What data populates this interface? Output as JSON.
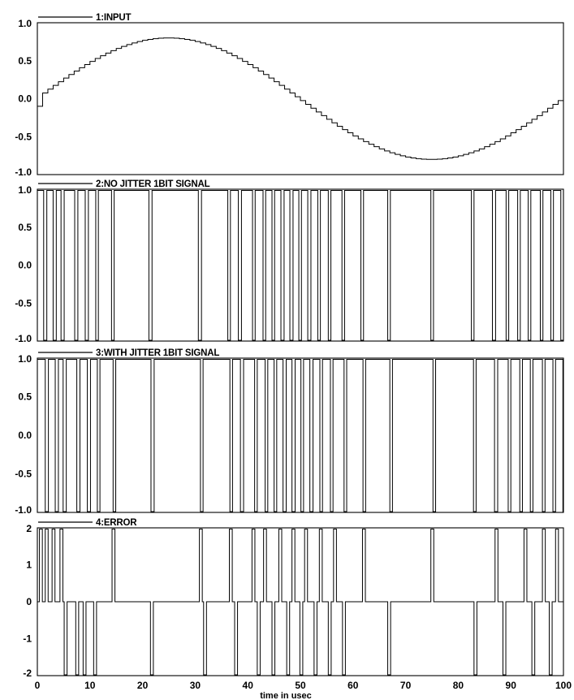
{
  "chart_data": {
    "type": "line",
    "x_axis": {
      "label": "time in usec",
      "range": [
        0,
        100
      ],
      "ticks": [
        0,
        10,
        20,
        30,
        40,
        50,
        60,
        70,
        80,
        90,
        100
      ]
    },
    "panels": [
      {
        "legend": "1:INPUT",
        "y_range": [
          -1,
          1
        ],
        "y_tick_labels": [
          "1.0",
          "0.5",
          "0.0",
          "-0.5",
          "-1.0"
        ],
        "y_ticks": [
          1,
          0.5,
          0,
          -0.5,
          -1
        ],
        "signal": "sine",
        "amplitude": 0.8,
        "period_usec": 100,
        "phase_start": -0.1,
        "step_usec": 1
      },
      {
        "legend": "2:NO  JITTER  1BIT  SIGNAL",
        "y_range": [
          -1,
          1
        ],
        "y_tick_labels": [
          "1.0",
          "0.5",
          "0.0",
          "-0.5",
          "-1.0"
        ],
        "y_ticks": [
          1,
          0.5,
          0,
          -0.5,
          -1
        ],
        "levels": [
          -1,
          1
        ],
        "edges": [
          0,
          1.2,
          1.8,
          3.0,
          3.6,
          4.5,
          5.1,
          7.1,
          7.7,
          9.1,
          9.7,
          11.1,
          11.6,
          14.1,
          14.6,
          21.2,
          21.8,
          30.6,
          31.2,
          36.2,
          36.7,
          38.2,
          38.8,
          40.9,
          41.4,
          42.9,
          43.4,
          44.6,
          45.1,
          46.3,
          46.9,
          48.0,
          48.6,
          49.7,
          50.2,
          51.4,
          52.0,
          53.3,
          53.8,
          55.3,
          55.8,
          57.9,
          58.4,
          61.5,
          62.0,
          66.6,
          67.1,
          74.8,
          75.3,
          82.5,
          83.0,
          86.5,
          87.1,
          89.1,
          89.6,
          91.3,
          91.8,
          93.3,
          93.8,
          95.6,
          96.1,
          97.6,
          98.1,
          99.5
        ],
        "start_level": 1
      },
      {
        "legend": "3:WITH  JITTER  1BIT  SIGNAL",
        "y_range": [
          -1,
          1
        ],
        "y_tick_labels": [
          "1.0",
          "0.5",
          "0.0",
          "-0.5",
          "-1.0"
        ],
        "y_ticks": [
          1,
          0.5,
          0,
          -0.5,
          -1
        ],
        "levels": [
          -1,
          1
        ],
        "edges": [
          0,
          1.5,
          2.1,
          3.4,
          4.0,
          4.9,
          5.5,
          7.5,
          8.1,
          9.5,
          10.1,
          11.4,
          11.9,
          14.4,
          14.9,
          21.6,
          22.2,
          31.0,
          31.5,
          36.6,
          37.1,
          38.6,
          39.2,
          41.3,
          41.8,
          43.3,
          43.8,
          45.0,
          45.5,
          46.7,
          47.3,
          48.4,
          49.0,
          50.1,
          50.6,
          51.8,
          52.4,
          53.7,
          54.2,
          55.7,
          56.2,
          58.3,
          58.8,
          61.9,
          62.4,
          67.0,
          67.5,
          75.2,
          75.7,
          82.9,
          83.4,
          86.9,
          87.5,
          89.5,
          90.0,
          91.7,
          92.2,
          93.7,
          94.2,
          96.0,
          96.5,
          98.0,
          98.5,
          99.9
        ],
        "start_level": 1
      },
      {
        "legend": "4:ERROR",
        "y_range": [
          -2,
          2
        ],
        "y_tick_labels": [
          "2",
          "1",
          "0",
          "-1",
          "-2"
        ],
        "y_ticks": [
          2,
          1,
          0,
          -1,
          -2
        ],
        "pulses": [
          {
            "x": 0.4,
            "sign": 1
          },
          {
            "x": 1.5,
            "sign": 1
          },
          {
            "x": 2.8,
            "sign": 1
          },
          {
            "x": 4.3,
            "sign": 1
          },
          {
            "x": 5.1,
            "sign": -1
          },
          {
            "x": 7.3,
            "sign": -1
          },
          {
            "x": 8.7,
            "sign": -1
          },
          {
            "x": 10.7,
            "sign": -1
          },
          {
            "x": 14.2,
            "sign": 1
          },
          {
            "x": 21.5,
            "sign": -1
          },
          {
            "x": 30.8,
            "sign": 1
          },
          {
            "x": 31.6,
            "sign": -1
          },
          {
            "x": 36.5,
            "sign": 1
          },
          {
            "x": 37.5,
            "sign": -1
          },
          {
            "x": 40.8,
            "sign": 1
          },
          {
            "x": 41.8,
            "sign": -1
          },
          {
            "x": 43.0,
            "sign": 1
          },
          {
            "x": 44.6,
            "sign": -1
          },
          {
            "x": 45.9,
            "sign": 1
          },
          {
            "x": 47.4,
            "sign": -1
          },
          {
            "x": 48.4,
            "sign": 1
          },
          {
            "x": 49.9,
            "sign": -1
          },
          {
            "x": 50.8,
            "sign": 1
          },
          {
            "x": 52.6,
            "sign": -1
          },
          {
            "x": 53.6,
            "sign": 1
          },
          {
            "x": 55.3,
            "sign": -1
          },
          {
            "x": 56.3,
            "sign": 1
          },
          {
            "x": 58.0,
            "sign": -1
          },
          {
            "x": 61.8,
            "sign": 1
          },
          {
            "x": 66.6,
            "sign": -1
          },
          {
            "x": 74.8,
            "sign": 1
          },
          {
            "x": 83.0,
            "sign": -1
          },
          {
            "x": 87.0,
            "sign": 1
          },
          {
            "x": 88.5,
            "sign": -1
          },
          {
            "x": 92.5,
            "sign": 1
          },
          {
            "x": 94.0,
            "sign": -1
          },
          {
            "x": 96.0,
            "sign": 1
          },
          {
            "x": 97.3,
            "sign": -1
          },
          {
            "x": 98.5,
            "sign": 1
          }
        ]
      }
    ]
  }
}
